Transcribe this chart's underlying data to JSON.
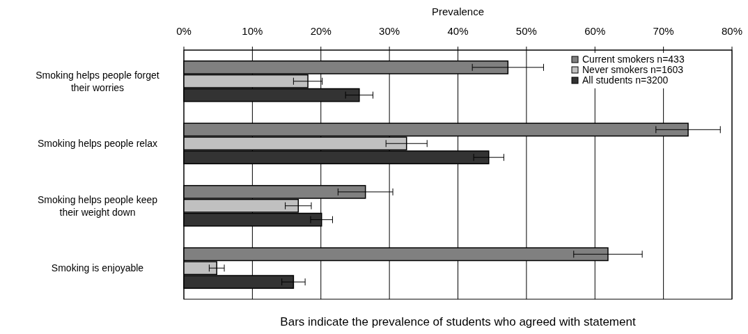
{
  "chart_data": {
    "type": "bar",
    "orientation": "horizontal",
    "xlabel": "Prevalence",
    "categories": [
      "Smoking helps people forget their worries",
      "Smoking helps people relax",
      "Smoking helps people keep their weight down",
      "Smoking is enjoyable"
    ],
    "series": [
      {
        "name": "Current smokers n=433",
        "color": "#808080",
        "values": [
          47.3,
          73.6,
          26.5,
          61.9
        ],
        "errors": [
          5.2,
          4.7,
          4,
          5
        ]
      },
      {
        "name": "Never smokers n=1603",
        "color": "#c0c0c0",
        "values": [
          18.1,
          32.5,
          16.7,
          4.8
        ],
        "errors": [
          2.1,
          3,
          1.9,
          1.1
        ]
      },
      {
        "name": "All students n=3200",
        "color": "#333333",
        "values": [
          25.6,
          44.5,
          20.1,
          16
        ],
        "errors": [
          2,
          2.2,
          1.6,
          1.7
        ]
      }
    ],
    "xlim": [
      0,
      80
    ],
    "xticks": [
      {
        "value": 0,
        "label": "0%"
      },
      {
        "value": 10,
        "label": "10%"
      },
      {
        "value": 20,
        "label": "20%"
      },
      {
        "value": 30,
        "label": "30%"
      },
      {
        "value": 40,
        "label": "40%"
      },
      {
        "value": 50,
        "label": "50%"
      },
      {
        "value": 60,
        "label": "60%"
      },
      {
        "value": 70,
        "label": "70%"
      },
      {
        "value": 80,
        "label": "80%"
      }
    ],
    "grid": "x",
    "legend": "top right",
    "annotations": [
      "Bars indicate the prevalence of students who agreed with statement"
    ]
  }
}
